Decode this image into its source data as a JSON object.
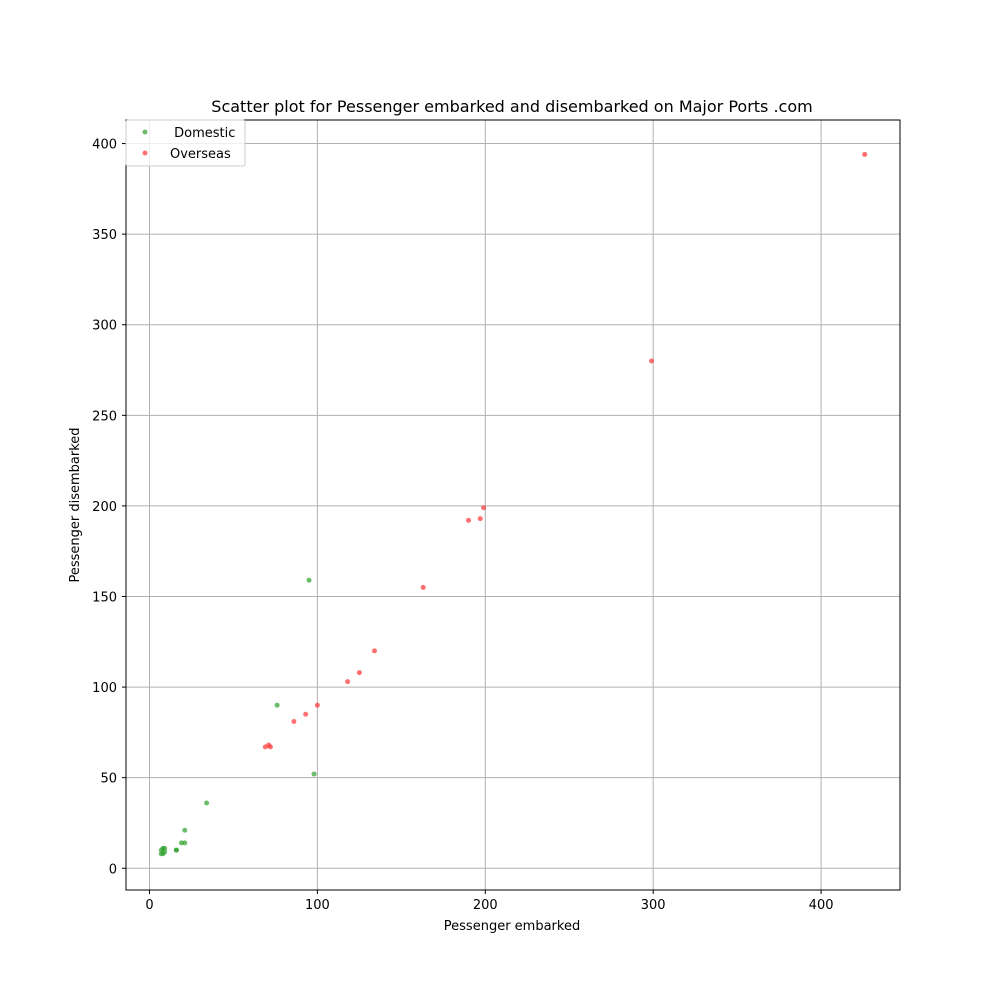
{
  "chart_data": {
    "type": "scatter",
    "title": "Scatter plot for Pessenger embarked and disembarked on Major Ports .com",
    "xlabel": "Pessenger embarked",
    "ylabel": "Pessenger disembarked",
    "xlim": [
      -14,
      447
    ],
    "ylim": [
      -12,
      413
    ],
    "xticks": [
      0,
      100,
      200,
      300,
      400
    ],
    "yticks": [
      0,
      50,
      100,
      150,
      200,
      250,
      300,
      350,
      400
    ],
    "grid": true,
    "legend_position": "top-left",
    "series": [
      {
        "name": " Domestic",
        "color": "#2ca02c",
        "x": [
          95,
          76,
          98,
          34,
          21,
          21,
          19,
          16,
          16,
          9,
          7,
          9,
          7,
          8,
          8
        ],
        "y": [
          159,
          90,
          52,
          36,
          21,
          14,
          14,
          10,
          10,
          11,
          8,
          9,
          10,
          8,
          11
        ]
      },
      {
        "name": "Overseas",
        "color": "#ff3333",
        "x": [
          426,
          299,
          199,
          197,
          190,
          163,
          134,
          125,
          118,
          100,
          93,
          86,
          72,
          71,
          69
        ],
        "y": [
          394,
          280,
          199,
          193,
          192,
          155,
          120,
          108,
          103,
          90,
          85,
          81,
          67,
          68,
          67
        ]
      }
    ]
  }
}
